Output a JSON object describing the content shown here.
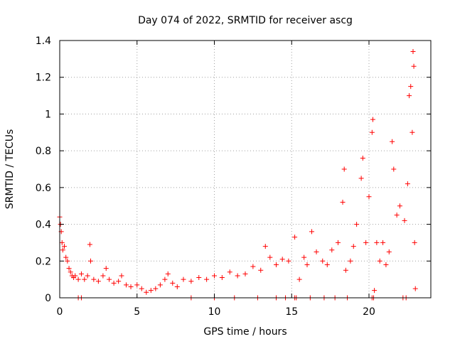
{
  "chart_data": {
    "type": "scatter",
    "title": "Day 074 of 2022, SRMTID for receiver ascg",
    "xlabel": "GPS time / hours",
    "ylabel": "SRMTID / TECUs",
    "xlim": [
      0,
      24
    ],
    "ylim": [
      0,
      1.4
    ],
    "xticks": [
      0,
      5,
      10,
      15,
      20
    ],
    "xtick_labels": [
      "0",
      "5",
      "10",
      "15",
      "20"
    ],
    "yticks": [
      0,
      0.2,
      0.4,
      0.6,
      0.8,
      1,
      1.2,
      1.4
    ],
    "ytick_labels": [
      "0",
      "0.2",
      "0.4",
      "0.6",
      "0.8",
      "1",
      "1.2",
      "1.4"
    ],
    "grid": true,
    "marker": "+",
    "marker_color": "#ff0000",
    "series": [
      {
        "name": "SRMTID",
        "points": [
          [
            0.0,
            0.44
          ],
          [
            0.05,
            0.4
          ],
          [
            0.1,
            0.36
          ],
          [
            0.15,
            0.3
          ],
          [
            0.2,
            0.26
          ],
          [
            0.3,
            0.28
          ],
          [
            0.4,
            0.22
          ],
          [
            0.5,
            0.2
          ],
          [
            0.6,
            0.16
          ],
          [
            0.7,
            0.14
          ],
          [
            0.8,
            0.12
          ],
          [
            0.9,
            0.11
          ],
          [
            1.0,
            0.12
          ],
          [
            1.2,
            0.1
          ],
          [
            1.4,
            0.13
          ],
          [
            1.6,
            0.1
          ],
          [
            1.8,
            0.12
          ],
          [
            1.95,
            0.29
          ],
          [
            2.0,
            0.2
          ],
          [
            2.2,
            0.1
          ],
          [
            2.5,
            0.09
          ],
          [
            2.8,
            0.12
          ],
          [
            3.0,
            0.16
          ],
          [
            3.2,
            0.1
          ],
          [
            3.5,
            0.08
          ],
          [
            3.8,
            0.09
          ],
          [
            4.0,
            0.12
          ],
          [
            4.3,
            0.07
          ],
          [
            4.6,
            0.06
          ],
          [
            5.0,
            0.07
          ],
          [
            5.3,
            0.05
          ],
          [
            5.6,
            0.03
          ],
          [
            5.9,
            0.04
          ],
          [
            6.2,
            0.05
          ],
          [
            6.5,
            0.07
          ],
          [
            6.8,
            0.1
          ],
          [
            7.0,
            0.13
          ],
          [
            7.3,
            0.08
          ],
          [
            7.6,
            0.06
          ],
          [
            8.0,
            0.1
          ],
          [
            8.5,
            0.09
          ],
          [
            9.0,
            0.11
          ],
          [
            9.5,
            0.1
          ],
          [
            10.0,
            0.12
          ],
          [
            10.5,
            0.11
          ],
          [
            11.0,
            0.14
          ],
          [
            11.5,
            0.12
          ],
          [
            12.0,
            0.13
          ],
          [
            12.5,
            0.17
          ],
          [
            13.0,
            0.15
          ],
          [
            13.3,
            0.28
          ],
          [
            13.6,
            0.22
          ],
          [
            14.0,
            0.18
          ],
          [
            14.4,
            0.21
          ],
          [
            14.8,
            0.2
          ],
          [
            15.2,
            0.33
          ],
          [
            15.5,
            0.1
          ],
          [
            15.8,
            0.22
          ],
          [
            16.0,
            0.18
          ],
          [
            16.3,
            0.36
          ],
          [
            16.6,
            0.25
          ],
          [
            17.0,
            0.2
          ],
          [
            17.3,
            0.18
          ],
          [
            17.6,
            0.26
          ],
          [
            18.0,
            0.3
          ],
          [
            18.3,
            0.52
          ],
          [
            18.4,
            0.7
          ],
          [
            18.5,
            0.15
          ],
          [
            18.8,
            0.2
          ],
          [
            19.0,
            0.28
          ],
          [
            19.2,
            0.4
          ],
          [
            19.5,
            0.65
          ],
          [
            19.6,
            0.76
          ],
          [
            19.8,
            0.3
          ],
          [
            20.0,
            0.55
          ],
          [
            20.2,
            0.9
          ],
          [
            20.25,
            0.97
          ],
          [
            20.35,
            0.04
          ],
          [
            20.5,
            0.3
          ],
          [
            20.7,
            0.2
          ],
          [
            20.9,
            0.3
          ],
          [
            21.1,
            0.18
          ],
          [
            21.3,
            0.25
          ],
          [
            21.5,
            0.85
          ],
          [
            21.6,
            0.7
          ],
          [
            21.8,
            0.45
          ],
          [
            22.0,
            0.5
          ],
          [
            22.3,
            0.42
          ],
          [
            22.5,
            0.62
          ],
          [
            22.6,
            1.1
          ],
          [
            22.7,
            1.15
          ],
          [
            22.8,
            0.9
          ],
          [
            22.85,
            1.34
          ],
          [
            22.9,
            1.26
          ],
          [
            22.95,
            0.3
          ],
          [
            23.0,
            0.05
          ]
        ]
      }
    ],
    "axis_ticks_bottom": [
      1.2,
      1.4,
      8.5,
      10.0,
      11.3,
      12.8,
      14.0,
      14.6,
      15.2,
      15.3,
      16.2,
      17.1,
      17.8,
      18.6,
      20.2,
      20.3,
      22.2,
      22.4
    ]
  }
}
